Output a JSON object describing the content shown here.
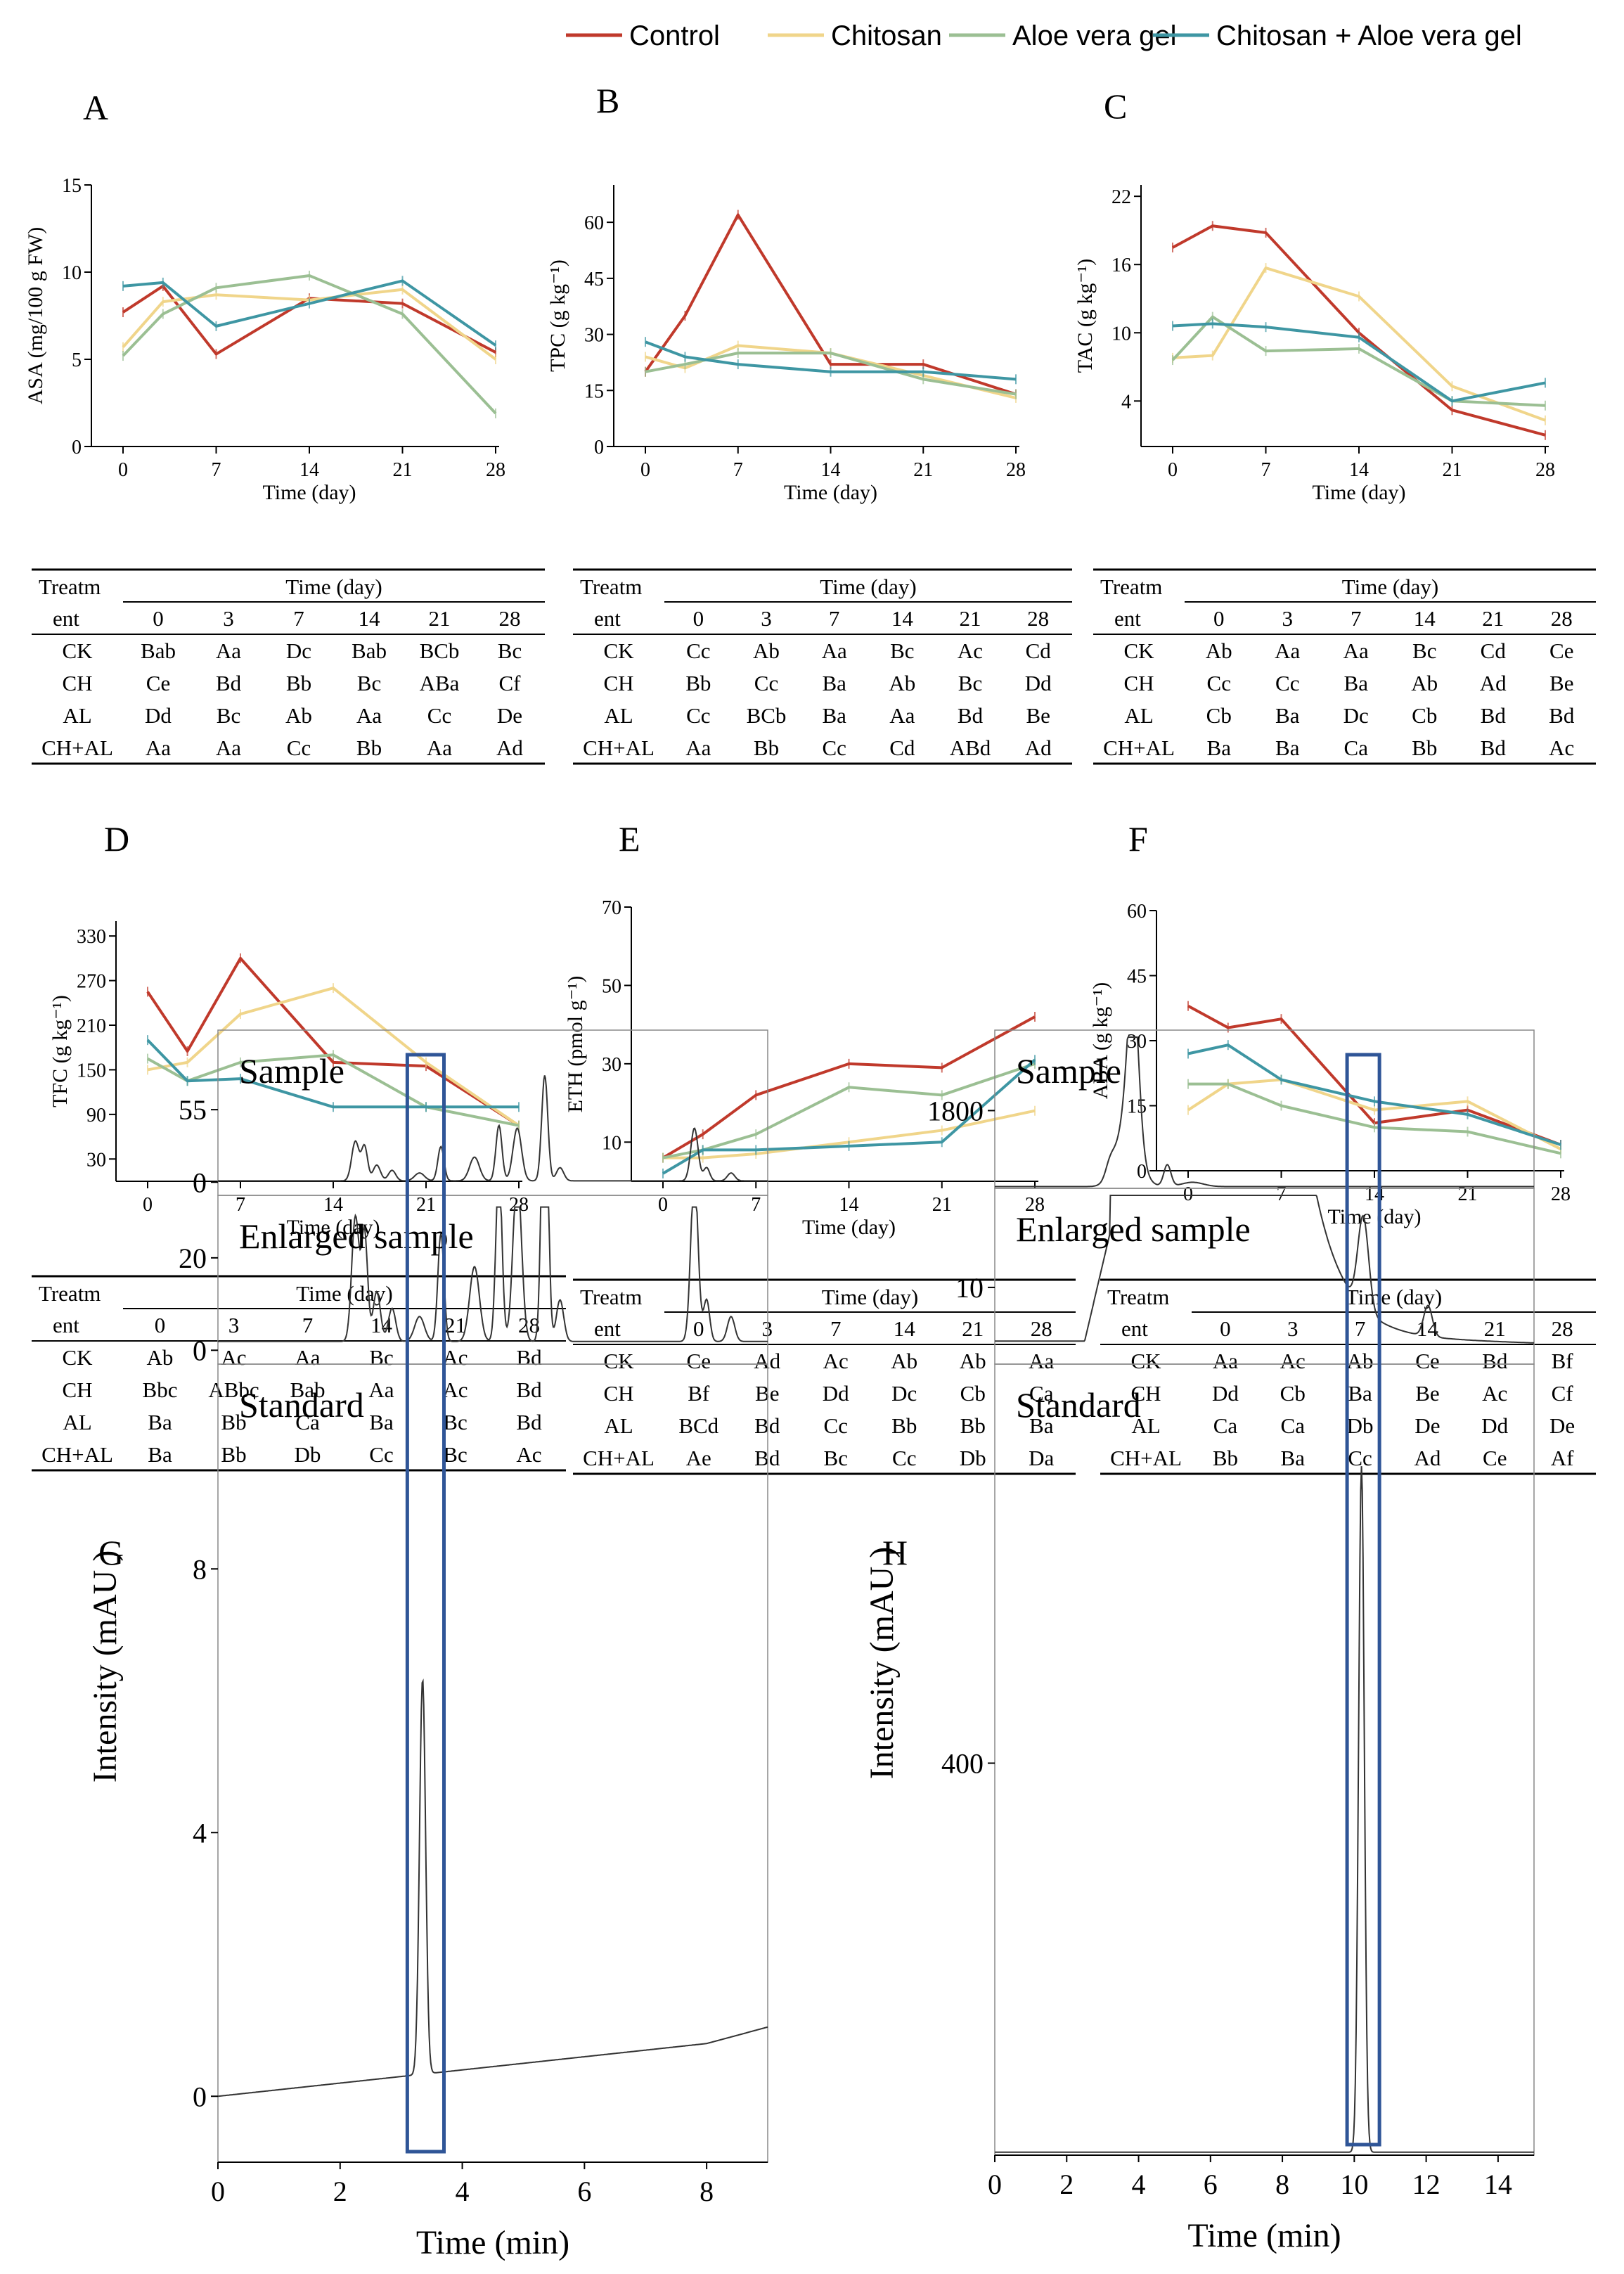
{
  "legend": [
    {
      "label": "Control",
      "color": "#c0392b"
    },
    {
      "label": "Chitosan",
      "color": "#f0d58a"
    },
    {
      "label": "Aloe vera gel",
      "color": "#9bbf93"
    },
    {
      "label": "Chitosan + Aloe vera gel",
      "color": "#3e96a3"
    }
  ],
  "chart_data": [
    {
      "id": "A",
      "type": "line",
      "title": "A",
      "xlabel": "Time (day)",
      "ylabel": "ASA (mg/100 g FW)",
      "x": [
        0,
        3,
        7,
        14,
        21,
        28
      ],
      "xticks": [
        0,
        7,
        14,
        21,
        28
      ],
      "ylim": [
        0,
        15
      ],
      "yticks": [
        0,
        5,
        10,
        15
      ],
      "series": [
        {
          "name": "Control",
          "values": [
            7.7,
            9.2,
            5.3,
            8.5,
            8.2,
            5.4
          ]
        },
        {
          "name": "Chitosan",
          "values": [
            5.7,
            8.3,
            8.7,
            8.4,
            9.0,
            5.0
          ]
        },
        {
          "name": "Aloe vera gel",
          "values": [
            5.2,
            7.6,
            9.1,
            9.8,
            7.6,
            1.9
          ]
        },
        {
          "name": "Chitosan + Aloe vera gel",
          "values": [
            9.2,
            9.4,
            6.9,
            8.2,
            9.5,
            5.8
          ]
        }
      ]
    },
    {
      "id": "B",
      "type": "line",
      "title": "B",
      "xlabel": "Time (day)",
      "ylabel": "TPC (g kg⁻¹)",
      "x": [
        0,
        3,
        7,
        14,
        21,
        28
      ],
      "xticks": [
        0,
        7,
        14,
        21,
        28
      ],
      "ylim": [
        0,
        70
      ],
      "yticks": [
        0,
        15,
        30,
        45,
        60
      ],
      "series": [
        {
          "name": "Control",
          "values": [
            20,
            35,
            62,
            22,
            22,
            14
          ]
        },
        {
          "name": "Chitosan",
          "values": [
            24,
            21,
            27,
            25,
            19,
            13
          ]
        },
        {
          "name": "Aloe vera gel",
          "values": [
            20,
            22,
            25,
            25,
            18,
            14
          ]
        },
        {
          "name": "Chitosan + Aloe vera gel",
          "values": [
            28,
            24,
            22,
            20,
            20,
            18
          ]
        }
      ]
    },
    {
      "id": "C",
      "type": "line",
      "title": "C",
      "xlabel": "Time (day)",
      "ylabel": "TAC (g kg⁻¹)",
      "x": [
        0,
        3,
        7,
        14,
        21,
        28
      ],
      "xticks": [
        0,
        7,
        14,
        21,
        28
      ],
      "ylim": [
        0,
        23
      ],
      "yticks": [
        4,
        10,
        16,
        22
      ],
      "series": [
        {
          "name": "Control",
          "values": [
            17.5,
            19.4,
            18.8,
            10.0,
            3.2,
            1.0
          ]
        },
        {
          "name": "Chitosan",
          "values": [
            7.8,
            8.0,
            15.7,
            13.2,
            5.3,
            2.3
          ]
        },
        {
          "name": "Aloe vera gel",
          "values": [
            7.6,
            11.4,
            8.4,
            8.6,
            4.0,
            3.6
          ]
        },
        {
          "name": "Chitosan + Aloe vera gel",
          "values": [
            10.6,
            10.8,
            10.5,
            9.6,
            4.0,
            5.6
          ]
        }
      ]
    },
    {
      "id": "D",
      "type": "line",
      "title": "D",
      "xlabel": "Time (day)",
      "ylabel": "TFC (g kg⁻¹)",
      "x": [
        0,
        3,
        7,
        14,
        21,
        28
      ],
      "xticks": [
        0,
        7,
        14,
        21,
        28
      ],
      "ylim": [
        0,
        350
      ],
      "yticks": [
        30,
        90,
        150,
        210,
        270,
        330
      ],
      "series": [
        {
          "name": "Control",
          "values": [
            255,
            175,
            300,
            160,
            155,
            75
          ]
        },
        {
          "name": "Chitosan",
          "values": [
            150,
            160,
            225,
            260,
            160,
            75
          ]
        },
        {
          "name": "Aloe vera gel",
          "values": [
            165,
            135,
            160,
            170,
            100,
            75
          ]
        },
        {
          "name": "Chitosan + Aloe vera gel",
          "values": [
            190,
            135,
            138,
            100,
            100,
            100
          ]
        }
      ]
    },
    {
      "id": "E",
      "type": "line",
      "title": "E",
      "xlabel": "Time (day)",
      "ylabel": "ETH (pmol g⁻¹)",
      "x": [
        0,
        3,
        7,
        14,
        21,
        28
      ],
      "xticks": [
        0,
        7,
        14,
        21,
        28
      ],
      "ylim": [
        0,
        70
      ],
      "yticks": [
        10,
        30,
        50,
        70
      ],
      "series": [
        {
          "name": "Control",
          "values": [
            6,
            12,
            22,
            30,
            29,
            42
          ]
        },
        {
          "name": "Chitosan",
          "values": [
            6,
            6,
            7,
            10,
            13,
            18
          ]
        },
        {
          "name": "Aloe vera gel",
          "values": [
            6,
            8,
            12,
            24,
            22,
            30
          ]
        },
        {
          "name": "Chitosan + Aloe vera gel",
          "values": [
            2,
            8,
            8,
            9,
            10,
            31
          ]
        }
      ]
    },
    {
      "id": "F",
      "type": "line",
      "title": "F",
      "xlabel": "Time (day)",
      "ylabel": "ABA (g kg⁻¹)",
      "x": [
        0,
        3,
        7,
        14,
        21,
        28
      ],
      "xticks": [
        0,
        7,
        14,
        21,
        28
      ],
      "ylim": [
        0,
        60
      ],
      "yticks": [
        0,
        15,
        30,
        45,
        60
      ],
      "series": [
        {
          "name": "Control",
          "values": [
            38,
            33,
            35,
            11,
            14,
            6
          ]
        },
        {
          "name": "Chitosan",
          "values": [
            14,
            20,
            21,
            14,
            16,
            5
          ]
        },
        {
          "name": "Aloe vera gel",
          "values": [
            20,
            20,
            15,
            10,
            9,
            4
          ]
        },
        {
          "name": "Chitosan + Aloe vera gel",
          "values": [
            27,
            29,
            21,
            16,
            13,
            6
          ]
        }
      ]
    },
    {
      "id": "G",
      "type": "line",
      "title": "G",
      "xlabel": "Time (min)",
      "ylabel": "Intensity (mAU )",
      "xlim": [
        0,
        9
      ],
      "xticks": [
        0,
        2,
        4,
        6,
        8
      ],
      "highlight_x": [
        3.1,
        3.7
      ],
      "panels": [
        {
          "label": "Sample",
          "yticks": [
            0,
            55
          ],
          "ylim": [
            -10,
            110
          ]
        },
        {
          "label": "Enlarged sample",
          "yticks": [
            0,
            20
          ],
          "ylim": [
            -3,
            32
          ]
        },
        {
          "label": "Standard",
          "yticks": [
            0,
            4,
            8
          ],
          "ylim": [
            -1,
            11
          ]
        }
      ]
    },
    {
      "id": "H",
      "type": "line",
      "title": "H",
      "xlabel": "Time (min)",
      "ylabel": "Intensity (mAU )",
      "xlim": [
        0,
        15
      ],
      "xticks": [
        0,
        2,
        4,
        6,
        8,
        10,
        12,
        14
      ],
      "highlight_x": [
        9.8,
        10.7
      ],
      "panels": [
        {
          "label": "Sample",
          "yticks": [
            1800
          ],
          "ylim": [
            0,
            3500
          ]
        },
        {
          "label": "Enlarged sample",
          "yticks": [
            10
          ],
          "ylim": [
            0,
            22
          ]
        },
        {
          "label": "Standard",
          "yticks": [
            400
          ],
          "ylim": [
            0,
            800
          ]
        }
      ]
    }
  ],
  "tables": [
    {
      "id": "tA",
      "header_left": [
        "Treatm",
        "ent"
      ],
      "header_top": "Time (day)",
      "days": [
        "0",
        "3",
        "7",
        "14",
        "21",
        "28"
      ],
      "rows": [
        [
          "CK",
          "Bab",
          "Aa",
          "Dc",
          "Bab",
          "BCb",
          "Bc"
        ],
        [
          "CH",
          "Ce",
          "Bd",
          "Bb",
          "Bc",
          "ABa",
          "Cf"
        ],
        [
          "AL",
          "Dd",
          "Bc",
          "Ab",
          "Aa",
          "Cc",
          "De"
        ],
        [
          "CH+AL",
          "Aa",
          "Aa",
          "Cc",
          "Bb",
          "Aa",
          "Ad"
        ]
      ]
    },
    {
      "id": "tB",
      "header_left": [
        "Treatm",
        "ent"
      ],
      "header_top": "Time (day)",
      "days": [
        "0",
        "3",
        "7",
        "14",
        "21",
        "28"
      ],
      "rows": [
        [
          "CK",
          "Cc",
          "Ab",
          "Aa",
          "Bc",
          "Ac",
          "Cd"
        ],
        [
          "CH",
          "Bb",
          "Cc",
          "Ba",
          "Ab",
          "Bc",
          "Dd"
        ],
        [
          "AL",
          "Cc",
          "BCb",
          "Ba",
          "Aa",
          "Bd",
          "Be"
        ],
        [
          "CH+AL",
          "Aa",
          "Bb",
          "Cc",
          "Cd",
          "ABd",
          "Ad"
        ]
      ]
    },
    {
      "id": "tC",
      "header_left": [
        "Treatm",
        "ent"
      ],
      "header_top": "Time (day)",
      "days": [
        "0",
        "3",
        "7",
        "14",
        "21",
        "28"
      ],
      "rows": [
        [
          "CK",
          "Ab",
          "Aa",
          "Aa",
          "Bc",
          "Cd",
          "Ce"
        ],
        [
          "CH",
          "Cc",
          "Cc",
          "Ba",
          "Ab",
          "Ad",
          "Be"
        ],
        [
          "AL",
          "Cb",
          "Ba",
          "Dc",
          "Cb",
          "Bd",
          "Bd"
        ],
        [
          "CH+AL",
          "Ba",
          "Ba",
          "Ca",
          "Bb",
          "Bd",
          "Ac"
        ]
      ]
    },
    {
      "id": "tD",
      "header_left": [
        "Treatm",
        "ent"
      ],
      "header_top": "Time (day)",
      "days": [
        "0",
        "3",
        "7",
        "14",
        "21",
        "28"
      ],
      "rows": [
        [
          "CK",
          "Ab",
          "Ac",
          "Aa",
          "Bc",
          "Ac",
          "Bd"
        ],
        [
          "CH",
          "Bbc",
          "ABbc",
          "Bab",
          "Aa",
          "Ac",
          "Bd"
        ],
        [
          "AL",
          "Ba",
          "Bb",
          "Ca",
          "Ba",
          "Bc",
          "Bd"
        ],
        [
          "CH+AL",
          "Ba",
          "Bb",
          "Db",
          "Cc",
          "Bc",
          "Ac"
        ]
      ]
    },
    {
      "id": "tE",
      "header_left": [
        "Treatm",
        "ent"
      ],
      "header_top": "Time (day)",
      "days": [
        "0",
        "3",
        "7",
        "14",
        "21",
        "28"
      ],
      "rows": [
        [
          "CK",
          "Ce",
          "Ad",
          "Ac",
          "Ab",
          "Ab",
          "Aa"
        ],
        [
          "CH",
          "Bf",
          "Be",
          "Dd",
          "Dc",
          "Cb",
          "Ca"
        ],
        [
          "AL",
          "BCd",
          "Bd",
          "Cc",
          "Bb",
          "Bb",
          "Ba"
        ],
        [
          "CH+AL",
          "Ae",
          "Bd",
          "Bc",
          "Cc",
          "Db",
          "Da"
        ]
      ]
    },
    {
      "id": "tF",
      "header_left": [
        "Treatm",
        "ent"
      ],
      "header_top": "Time (day)",
      "days": [
        "0",
        "3",
        "7",
        "14",
        "21",
        "28"
      ],
      "rows": [
        [
          "CK",
          "Aa",
          "Ac",
          "Ab",
          "Ce",
          "Bd",
          "Bf"
        ],
        [
          "CH",
          "Dd",
          "Cb",
          "Ba",
          "Be",
          "Ac",
          "Cf"
        ],
        [
          "AL",
          "Ca",
          "Ca",
          "Db",
          "De",
          "Dd",
          "De"
        ],
        [
          "CH+AL",
          "Bb",
          "Ba",
          "Cc",
          "Ad",
          "Ce",
          "Af"
        ]
      ]
    }
  ]
}
